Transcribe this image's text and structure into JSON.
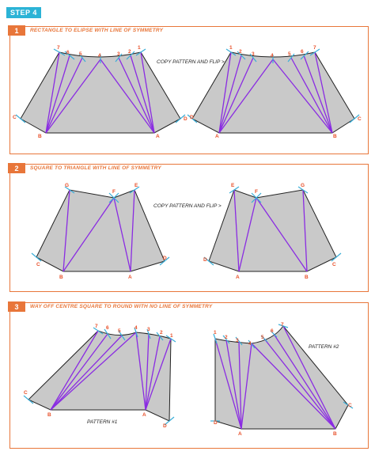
{
  "step_label": "STEP 4",
  "sections": [
    {
      "number": "1",
      "title": "RECTANGLE TO ELIPSE WITH LINE OF SYMMETRY",
      "note": "COPY PATTERN AND FLIP >"
    },
    {
      "number": "2",
      "title": "SQUARE TO TRIANGLE WITH LINE OF SYMMETRY",
      "note": "COPY PATTERN AND FLIP >"
    },
    {
      "number": "3",
      "title_prefix": "WAY OFF CENTRE SQUARE TO ROUND WITH ",
      "title_emphasis": "NO LINE OF SYMMETRY",
      "pattern1": "PATTERN #1",
      "pattern2": "PATTERN #2"
    }
  ],
  "labels": {
    "A": "A",
    "B": "B",
    "C": "C",
    "D": "D",
    "E": "E",
    "F": "F",
    "G": "G",
    "n1": "1",
    "n2": "2",
    "n3": "3",
    "n4": "4",
    "n5": "5",
    "n6": "6",
    "n7": "7"
  },
  "colors": {
    "accent": "#e8763a",
    "step_badge": "#2bb3d6",
    "lines": "#8a2be2",
    "ticks": "#3aaed8",
    "fill": "#c9c9c9"
  }
}
